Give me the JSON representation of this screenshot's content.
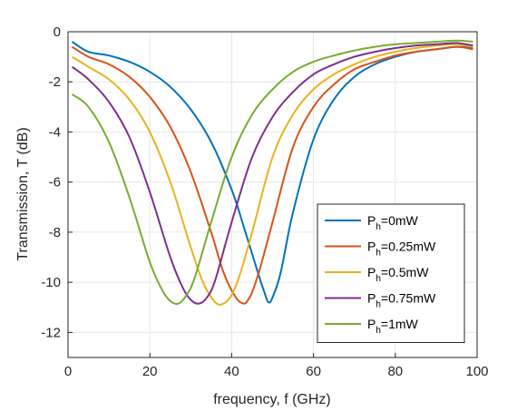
{
  "chart_data": {
    "type": "line",
    "title": "",
    "xlabel": "frequency, f (GHz)",
    "ylabel": "Transmission, T (dB)",
    "xlim": [
      0,
      100
    ],
    "ylim": [
      -13,
      0
    ],
    "xticks": [
      "0",
      "20",
      "40",
      "60",
      "80",
      "100"
    ],
    "yticks": [
      "0",
      "-2",
      "-4",
      "-6",
      "-8",
      "-10",
      "-12"
    ],
    "grid": true,
    "legend_position": "lower-right",
    "series": [
      {
        "name": "P_h=0mW",
        "label_main": "P",
        "label_sub": "h",
        "label_rest": "=0mW",
        "color": "#0072BD",
        "x": [
          1,
          5,
          10,
          15,
          20,
          25,
          30,
          35,
          40,
          43,
          46,
          48,
          49,
          50,
          52,
          55,
          60,
          65,
          70,
          75,
          80,
          85,
          90,
          95,
          99
        ],
        "y": [
          -0.4,
          -0.8,
          -0.95,
          -1.2,
          -1.6,
          -2.2,
          -3.1,
          -4.4,
          -6.3,
          -7.8,
          -9.4,
          -10.4,
          -10.8,
          -10.6,
          -9.6,
          -7.2,
          -4.3,
          -2.7,
          -1.8,
          -1.3,
          -1.0,
          -0.8,
          -0.7,
          -0.6,
          -0.65
        ]
      },
      {
        "name": "P_h=0.25mW",
        "label_main": "P",
        "label_sub": "h",
        "label_rest": "=0.25mW",
        "color": "#D95319",
        "x": [
          1,
          5,
          10,
          15,
          20,
          25,
          30,
          35,
          38,
          41,
          43,
          44,
          45,
          47,
          50,
          55,
          60,
          65,
          70,
          75,
          80,
          85,
          90,
          95,
          99
        ],
        "y": [
          -0.6,
          -1.0,
          -1.3,
          -1.8,
          -2.6,
          -3.8,
          -5.6,
          -8.0,
          -9.6,
          -10.6,
          -10.85,
          -10.7,
          -10.4,
          -9.4,
          -7.6,
          -4.6,
          -3.0,
          -2.1,
          -1.5,
          -1.2,
          -0.95,
          -0.8,
          -0.7,
          -0.6,
          -0.7
        ]
      },
      {
        "name": "P_h=0.5mW",
        "label_main": "P",
        "label_sub": "h",
        "label_rest": "=0.5mW",
        "color": "#EDB120",
        "x": [
          1,
          5,
          10,
          15,
          20,
          25,
          30,
          33,
          36,
          38,
          40,
          42,
          45,
          50,
          55,
          60,
          65,
          70,
          75,
          80,
          85,
          90,
          95,
          99
        ],
        "y": [
          -1.0,
          -1.4,
          -1.9,
          -2.7,
          -4.0,
          -6.0,
          -8.6,
          -10.0,
          -10.8,
          -10.85,
          -10.5,
          -9.7,
          -8.0,
          -5.0,
          -3.3,
          -2.3,
          -1.7,
          -1.3,
          -1.0,
          -0.8,
          -0.65,
          -0.55,
          -0.5,
          -0.6
        ]
      },
      {
        "name": "P_h=0.75mW",
        "label_main": "P",
        "label_sub": "h",
        "label_rest": "=0.75mW",
        "color": "#7E2F8E",
        "x": [
          1,
          5,
          10,
          15,
          20,
          25,
          28,
          30,
          32,
          34,
          36,
          40,
          45,
          50,
          55,
          60,
          65,
          70,
          75,
          80,
          85,
          90,
          95,
          99
        ],
        "y": [
          -1.4,
          -1.9,
          -2.8,
          -4.2,
          -6.4,
          -9.0,
          -10.2,
          -10.7,
          -10.85,
          -10.6,
          -9.9,
          -7.6,
          -5.0,
          -3.4,
          -2.4,
          -1.7,
          -1.3,
          -1.0,
          -0.8,
          -0.65,
          -0.55,
          -0.5,
          -0.45,
          -0.55
        ]
      },
      {
        "name": "P_h=1mW",
        "label_main": "P",
        "label_sub": "h",
        "label_rest": "=1mW",
        "color": "#77AC30",
        "x": [
          1,
          5,
          10,
          15,
          20,
          23,
          25,
          27,
          29,
          31,
          35,
          40,
          45,
          50,
          55,
          60,
          65,
          70,
          75,
          80,
          85,
          90,
          95,
          99
        ],
        "y": [
          -2.5,
          -3.0,
          -4.4,
          -6.6,
          -9.2,
          -10.3,
          -10.75,
          -10.85,
          -10.5,
          -9.8,
          -7.6,
          -5.0,
          -3.3,
          -2.3,
          -1.6,
          -1.2,
          -0.95,
          -0.75,
          -0.6,
          -0.5,
          -0.45,
          -0.4,
          -0.35,
          -0.4
        ]
      }
    ]
  }
}
